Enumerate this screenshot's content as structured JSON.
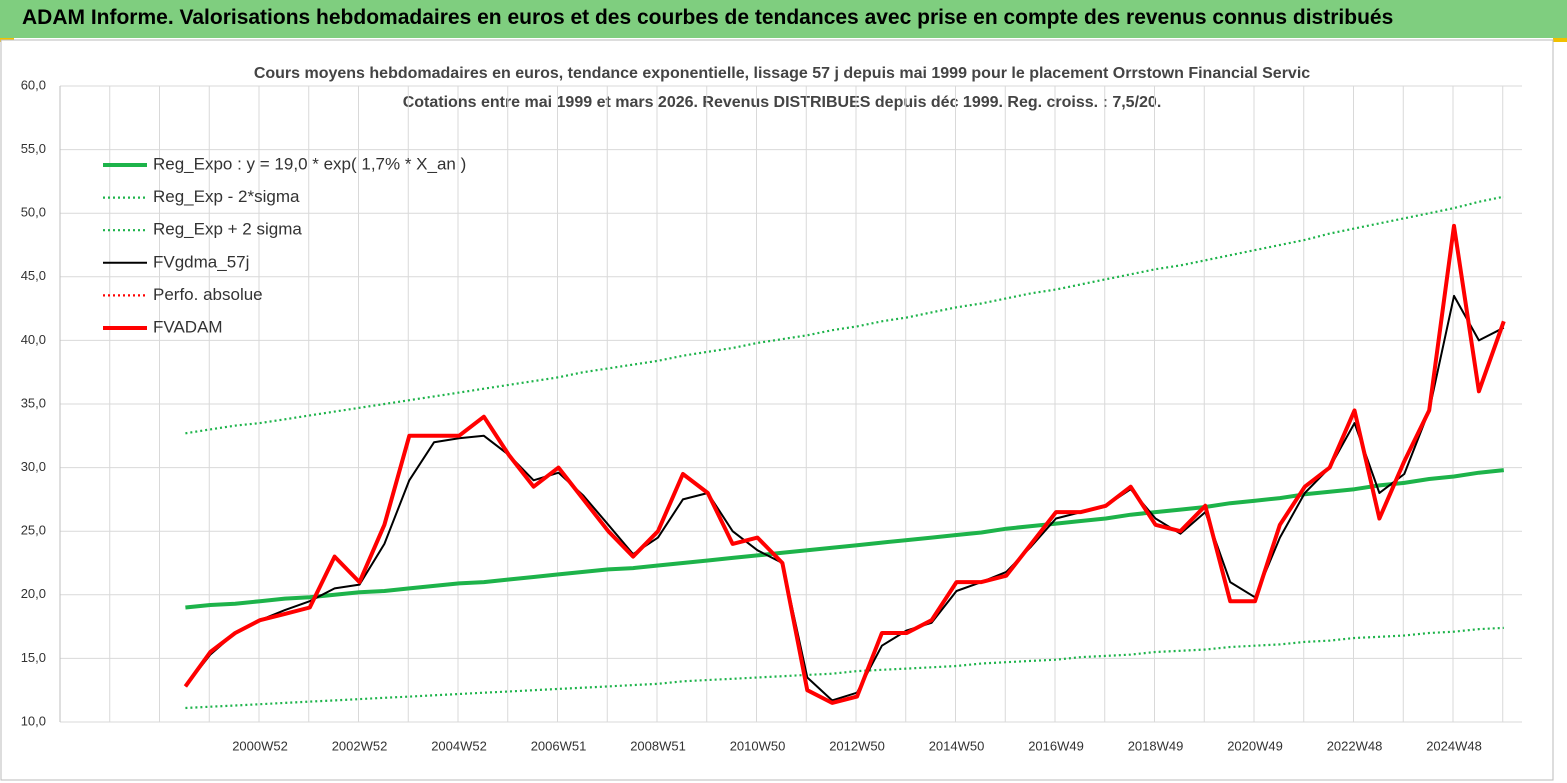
{
  "header": {
    "title": "ADAM Informe. Valorisations hebdomadaires en euros et des courbes de tendances avec prise en compte des revenus connus distribués"
  },
  "chart_data": {
    "type": "line",
    "title": "Cours moyens hebdomadaires en euros, tendance exponentielle, lissage 57 j depuis mai 1999 pour le placement Orrstown Financial Servic",
    "subtitle": "Cotations entre mai 1999 et mars 2026. Revenus DISTRIBUES depuis déc 1999. Reg. croiss. : 7,5/20.",
    "categories": [
      null,
      null,
      null,
      "2000W52",
      null,
      null,
      null,
      "2002W52",
      null,
      null,
      null,
      "2004W52",
      null,
      null,
      null,
      "2006W51",
      null,
      null,
      null,
      "2008W51",
      null,
      null,
      null,
      "2010W50",
      null,
      null,
      null,
      "2012W50",
      null,
      null,
      null,
      "2014W50",
      null,
      null,
      null,
      "2016W49",
      null,
      null,
      null,
      "2018W49",
      null,
      null,
      null,
      "2020W49",
      null,
      null,
      null,
      "2022W48",
      null,
      null,
      null,
      "2024W48",
      null,
      null
    ],
    "ylim": [
      10,
      60
    ],
    "yticks": [
      {
        "value": 10,
        "label": "10,0"
      },
      {
        "value": 15,
        "label": "15,0"
      },
      {
        "value": 20,
        "label": "20,0"
      },
      {
        "value": 25,
        "label": "25,0"
      },
      {
        "value": 30,
        "label": "30,0"
      },
      {
        "value": 35,
        "label": "35,0"
      },
      {
        "value": 40,
        "label": "40,0"
      },
      {
        "value": 45,
        "label": "45,0"
      },
      {
        "value": 50,
        "label": "50,0"
      },
      {
        "value": 55,
        "label": "55,0"
      },
      {
        "value": 60,
        "label": "60,0"
      }
    ],
    "grid": true,
    "legend": "top-left",
    "series": [
      {
        "name": "Reg_Expo : y = 19,0 * exp( 1,7% *  X_an )",
        "color": "#1db34a",
        "style": "thick",
        "values": [
          19.0,
          19.2,
          19.3,
          19.5,
          19.7,
          19.8,
          20.0,
          20.2,
          20.3,
          20.5,
          20.7,
          20.9,
          21.0,
          21.2,
          21.4,
          21.6,
          21.8,
          22.0,
          22.1,
          22.3,
          22.5,
          22.7,
          22.9,
          23.1,
          23.3,
          23.5,
          23.7,
          23.9,
          24.1,
          24.3,
          24.5,
          24.7,
          24.9,
          25.2,
          25.4,
          25.6,
          25.8,
          26.0,
          26.3,
          26.5,
          26.7,
          26.9,
          27.2,
          27.4,
          27.6,
          27.9,
          28.1,
          28.3,
          28.6,
          28.8,
          29.1,
          29.3,
          29.6,
          29.8
        ]
      },
      {
        "name": "Reg_Exp - 2*sigma",
        "color": "#1db34a",
        "style": "dotted",
        "values": [
          11.1,
          11.2,
          11.3,
          11.4,
          11.5,
          11.6,
          11.7,
          11.8,
          11.9,
          12.0,
          12.1,
          12.2,
          12.3,
          12.4,
          12.5,
          12.6,
          12.7,
          12.8,
          12.9,
          13.0,
          13.2,
          13.3,
          13.4,
          13.5,
          13.6,
          13.7,
          13.8,
          14.0,
          14.1,
          14.2,
          14.3,
          14.4,
          14.6,
          14.7,
          14.8,
          14.9,
          15.1,
          15.2,
          15.3,
          15.5,
          15.6,
          15.7,
          15.9,
          16.0,
          16.1,
          16.3,
          16.4,
          16.6,
          16.7,
          16.8,
          17.0,
          17.1,
          17.3,
          17.4
        ]
      },
      {
        "name": "Reg_Exp + 2 sigma",
        "color": "#1db34a",
        "style": "dotted",
        "values": [
          32.7,
          33.0,
          33.3,
          33.5,
          33.8,
          34.1,
          34.4,
          34.7,
          35.0,
          35.3,
          35.6,
          35.9,
          36.2,
          36.5,
          36.8,
          37.1,
          37.5,
          37.8,
          38.1,
          38.4,
          38.8,
          39.1,
          39.4,
          39.8,
          40.1,
          40.4,
          40.8,
          41.1,
          41.5,
          41.8,
          42.2,
          42.6,
          42.9,
          43.3,
          43.7,
          44.0,
          44.4,
          44.8,
          45.2,
          45.6,
          45.9,
          46.3,
          46.7,
          47.1,
          47.5,
          47.9,
          48.4,
          48.8,
          49.2,
          49.6,
          50.0,
          50.4,
          50.9,
          51.3
        ]
      },
      {
        "name": "FVgdma_57j",
        "color": "#000000",
        "style": "solid",
        "values": [
          12.8,
          15.3,
          17.0,
          18.0,
          18.8,
          19.5,
          20.5,
          20.8,
          24.0,
          29.0,
          32.0,
          32.3,
          32.5,
          31.0,
          29.0,
          29.6,
          27.8,
          25.5,
          23.2,
          24.5,
          27.5,
          28.0,
          25.0,
          23.5,
          22.5,
          13.5,
          11.7,
          12.3,
          16.0,
          17.2,
          17.8,
          20.3,
          21.0,
          21.8,
          23.8,
          26.0,
          26.5,
          27.0,
          28.3,
          26.0,
          24.8,
          26.5,
          21.0,
          19.8,
          24.5,
          28.0,
          30.0,
          33.5,
          28.0,
          29.5,
          34.5,
          43.5,
          40.0,
          41.0
        ]
      },
      {
        "name": "Perfo. absolue",
        "color": "#ff0000",
        "style": "dotted",
        "values": [
          null,
          null,
          null,
          null,
          null,
          null,
          null,
          null,
          null,
          null,
          null,
          null,
          null,
          null,
          null,
          null,
          null,
          null,
          null,
          null,
          null,
          null,
          null,
          null,
          null,
          null,
          null,
          null,
          null,
          null,
          null,
          null,
          null,
          null,
          null,
          null,
          null,
          null,
          null,
          null,
          null,
          null,
          null,
          null,
          null,
          null,
          null,
          null,
          null,
          null,
          null,
          null,
          null,
          null
        ]
      },
      {
        "name": "FVADAM",
        "color": "#ff0000",
        "style": "thick",
        "values": [
          12.8,
          15.5,
          17.0,
          18.0,
          18.5,
          19.0,
          23.0,
          21.0,
          25.5,
          32.5,
          32.5,
          32.5,
          34.0,
          31.0,
          28.5,
          30.0,
          27.5,
          25.0,
          23.0,
          25.0,
          29.5,
          28.0,
          24.0,
          24.5,
          22.5,
          12.5,
          11.5,
          12.0,
          17.0,
          17.0,
          18.0,
          21.0,
          21.0,
          21.5,
          24.0,
          26.5,
          26.5,
          27.0,
          28.5,
          25.5,
          25.0,
          27.0,
          19.5,
          19.5,
          25.5,
          28.5,
          30.0,
          34.5,
          26.0,
          30.5,
          34.5,
          49.0,
          36.0,
          41.5
        ]
      }
    ]
  }
}
